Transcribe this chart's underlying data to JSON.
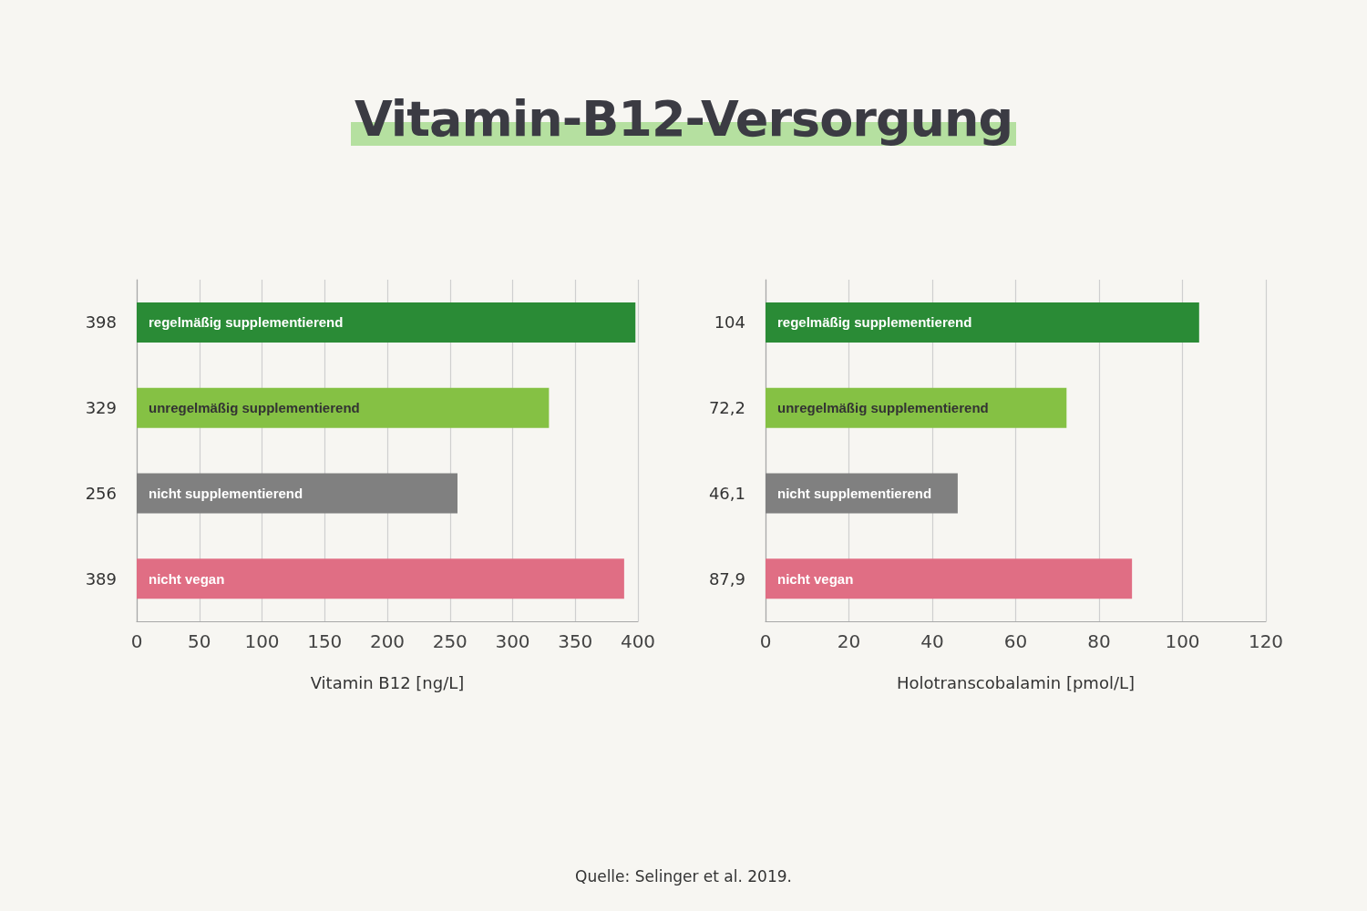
{
  "chart_data": [
    {
      "type": "bar",
      "orientation": "horizontal",
      "title": "Vitamin-B12-Versorgung",
      "categories": [
        "regelmäßig supplementierend",
        "unregelmäßig supplementierend",
        "nicht supplementierend",
        "nicht vegan"
      ],
      "values": [
        398,
        329,
        256,
        389
      ],
      "value_labels": [
        "398",
        "329",
        "256",
        "389"
      ],
      "colors": [
        "#2a8b36",
        "#85c144",
        "#808080",
        "#e06e84"
      ],
      "xlim": [
        0,
        400
      ],
      "xticks": [
        0,
        50,
        100,
        150,
        200,
        250,
        300,
        350,
        400
      ],
      "xlabel": "Vitamin B12 [ng/L]",
      "grid": "x",
      "annotations": [
        "Quelle: Selinger et al. 2019."
      ]
    },
    {
      "type": "bar",
      "orientation": "horizontal",
      "categories": [
        "regelmäßig supplementierend",
        "unregelmäßig supplementierend",
        "nicht supplementierend",
        "nicht vegan"
      ],
      "values": [
        104,
        72.2,
        46.1,
        87.9
      ],
      "value_labels": [
        "104",
        "72,2",
        "46,1",
        "87,9"
      ],
      "colors": [
        "#2a8b36",
        "#85c144",
        "#808080",
        "#e06e84"
      ],
      "xlim": [
        0,
        120
      ],
      "xticks": [
        0,
        20,
        40,
        60,
        80,
        100,
        120
      ],
      "xlabel": "Holotranscobalamin [pmol/L]",
      "grid": "x"
    }
  ]
}
